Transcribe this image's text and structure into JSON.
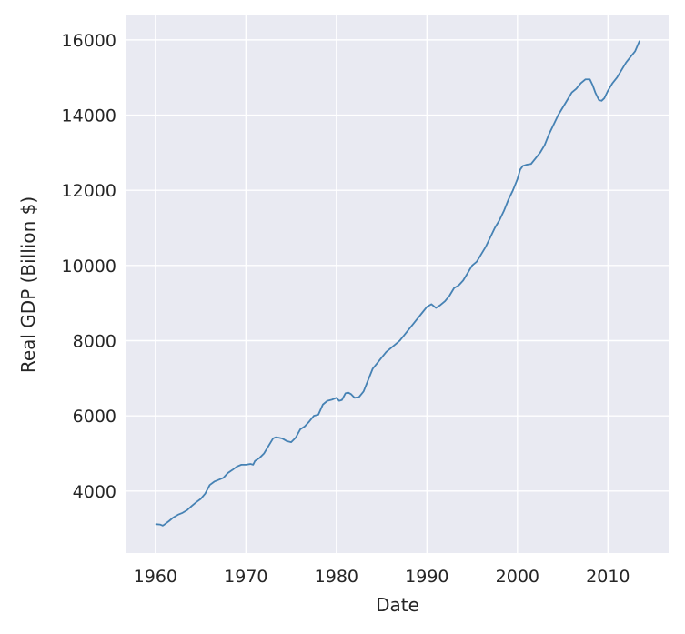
{
  "chart_data": {
    "type": "line",
    "title": "",
    "xlabel": "Date",
    "ylabel": "Real GDP (Billion $)",
    "xlim": [
      1956.8,
      2016.7
    ],
    "ylim": [
      2350,
      16650
    ],
    "xticks": [
      1960,
      1970,
      1980,
      1990,
      2000,
      2010
    ],
    "yticks": [
      4000,
      6000,
      8000,
      10000,
      12000,
      14000,
      16000
    ],
    "grid": true,
    "colors": {
      "background": "#e9eaf2",
      "grid": "#ffffff",
      "line": "#4682b4"
    },
    "series": [
      {
        "x": [
          1960.0,
          1960.5,
          1960.8,
          1961.0,
          1961.5,
          1962.0,
          1962.5,
          1963.0,
          1963.5,
          1964.0,
          1964.5,
          1965.0,
          1965.5,
          1966.0,
          1966.5,
          1967.0,
          1967.5,
          1968.0,
          1968.5,
          1969.0,
          1969.5,
          1970.0,
          1970.5,
          1970.8,
          1971.0,
          1971.5,
          1972.0,
          1972.5,
          1973.0,
          1973.3,
          1973.6,
          1974.0,
          1974.5,
          1975.0,
          1975.5,
          1976.0,
          1976.5,
          1977.0,
          1977.5,
          1978.0,
          1978.5,
          1979.0,
          1979.5,
          1980.0,
          1980.3,
          1980.6,
          1981.0,
          1981.3,
          1981.6,
          1982.0,
          1982.5,
          1983.0,
          1983.5,
          1984.0,
          1984.5,
          1985.0,
          1985.5,
          1986.0,
          1986.5,
          1987.0,
          1987.5,
          1988.0,
          1988.5,
          1989.0,
          1989.5,
          1990.0,
          1990.5,
          1991.0,
          1991.5,
          1992.0,
          1992.5,
          1993.0,
          1993.5,
          1994.0,
          1994.5,
          1995.0,
          1995.5,
          1996.0,
          1996.5,
          1997.0,
          1997.5,
          1998.0,
          1998.5,
          1999.0,
          1999.5,
          2000.0,
          2000.3,
          2000.6,
          2001.0,
          2001.5,
          2002.0,
          2002.5,
          2003.0,
          2003.5,
          2004.0,
          2004.5,
          2005.0,
          2005.5,
          2006.0,
          2006.5,
          2007.0,
          2007.5,
          2008.0,
          2008.3,
          2008.6,
          2009.0,
          2009.3,
          2009.6,
          2010.0,
          2010.5,
          2011.0,
          2011.5,
          2012.0,
          2012.5,
          2013.0,
          2013.5
        ],
        "y": [
          3120,
          3110,
          3080,
          3110,
          3200,
          3300,
          3370,
          3420,
          3490,
          3600,
          3700,
          3790,
          3930,
          4160,
          4250,
          4300,
          4350,
          4480,
          4560,
          4650,
          4700,
          4700,
          4720,
          4700,
          4800,
          4880,
          5000,
          5200,
          5400,
          5430,
          5420,
          5400,
          5330,
          5300,
          5420,
          5640,
          5720,
          5850,
          6000,
          6030,
          6300,
          6400,
          6430,
          6480,
          6400,
          6420,
          6600,
          6620,
          6580,
          6480,
          6500,
          6650,
          6950,
          7250,
          7400,
          7550,
          7700,
          7800,
          7900,
          8000,
          8150,
          8300,
          8450,
          8600,
          8750,
          8900,
          8970,
          8870,
          8950,
          9050,
          9200,
          9400,
          9470,
          9600,
          9800,
          10000,
          10100,
          10300,
          10500,
          10750,
          11000,
          11200,
          11450,
          11750,
          12000,
          12300,
          12550,
          12650,
          12680,
          12700,
          12850,
          13000,
          13200,
          13500,
          13750,
          14000,
          14200,
          14400,
          14600,
          14700,
          14850,
          14950,
          14950,
          14800,
          14600,
          14400,
          14380,
          14450,
          14650,
          14850,
          15000,
          15200,
          15400,
          15550,
          15700,
          15980
        ]
      }
    ]
  }
}
